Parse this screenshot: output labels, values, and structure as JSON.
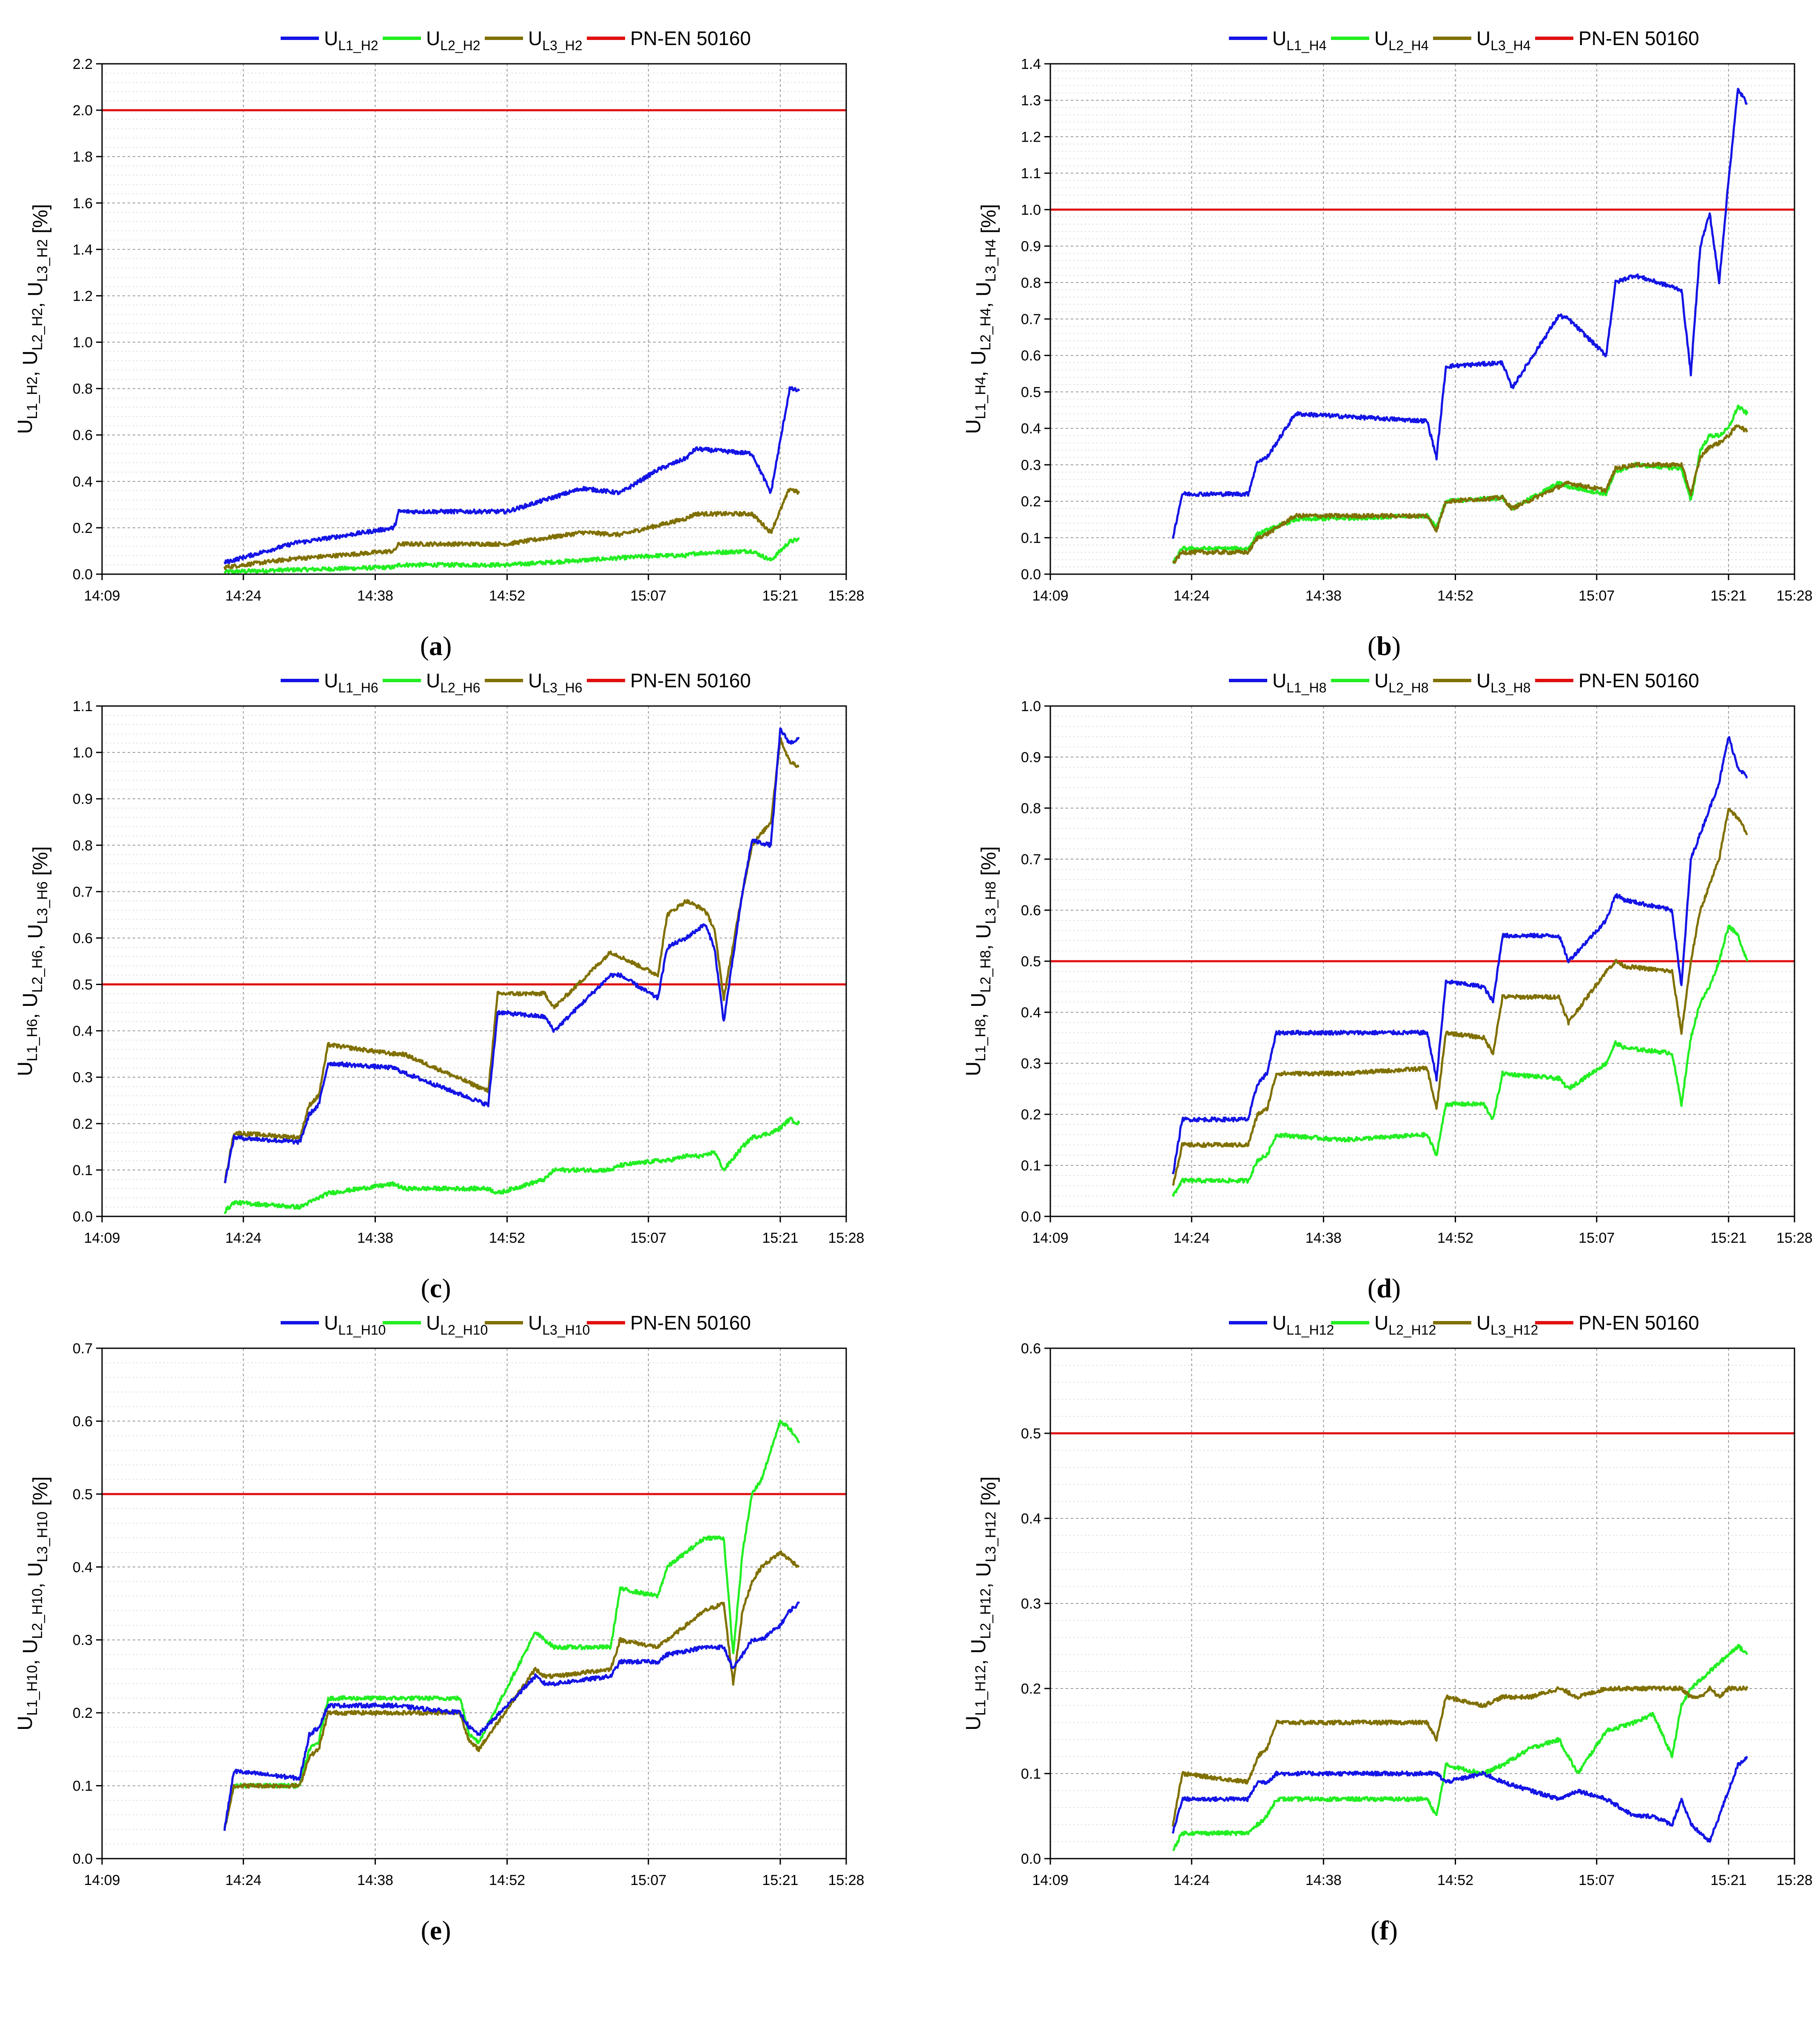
{
  "figure": {
    "time_axis": {
      "ticks": [
        "14:09",
        "14:24",
        "14:38",
        "14:52",
        "15:07",
        "15:21",
        "15:28"
      ],
      "range_min": [
        849,
        928
      ]
    }
  },
  "colors": {
    "L1": "#1414e6",
    "L2": "#22ee22",
    "L3": "#807000",
    "limit": "#e01010"
  },
  "chart_data": [
    {
      "type": "line",
      "panel": "a",
      "caption": {
        "letter": "a"
      },
      "harmonic": "H2",
      "legend": [
        {
          "key": "L1",
          "main": "U",
          "sub": "L1_H2"
        },
        {
          "key": "L2",
          "main": "U",
          "sub": "L2_H2"
        },
        {
          "key": "L3",
          "main": "U",
          "sub": "L3_H2"
        },
        {
          "key": "limit",
          "main": "PN-EN 50160",
          "sub": ""
        }
      ],
      "ylabel": {
        "parts": [
          {
            "t": "U",
            "s": "L1_H2"
          },
          {
            "t": ", U",
            "s": "L2_H2"
          },
          {
            "t": ", U",
            "s": "L3_H2"
          },
          {
            "t": " [%]",
            "s": ""
          }
        ]
      },
      "ylim": [
        0,
        2.2
      ],
      "yticks": [
        "0.0",
        "0.2",
        "0.4",
        "0.6",
        "0.8",
        "1.0",
        "1.2",
        "1.4",
        "1.6",
        "1.8",
        "2.0",
        "2.2"
      ],
      "limit": 2.0,
      "x_minutes": [
        862,
        870,
        870.5,
        880,
        880.5,
        888,
        888.5,
        892,
        900,
        904,
        908,
        911,
        912,
        918,
        920,
        922,
        923
      ],
      "series": [
        {
          "name": "U_L1_H2",
          "key": "L1",
          "values": [
            0.05,
            0.14,
            0.14,
            0.2,
            0.27,
            0.27,
            0.27,
            0.27,
            0.37,
            0.35,
            0.45,
            0.5,
            0.54,
            0.52,
            0.35,
            0.8,
            0.79
          ]
        },
        {
          "name": "U_L2_H2",
          "key": "L2",
          "values": [
            0.01,
            0.02,
            0.02,
            0.03,
            0.04,
            0.04,
            0.04,
            0.04,
            0.06,
            0.07,
            0.08,
            0.08,
            0.09,
            0.1,
            0.06,
            0.14,
            0.15
          ]
        },
        {
          "name": "U_L3_H2",
          "key": "L3",
          "values": [
            0.03,
            0.07,
            0.07,
            0.1,
            0.13,
            0.13,
            0.13,
            0.13,
            0.18,
            0.17,
            0.21,
            0.24,
            0.26,
            0.26,
            0.18,
            0.37,
            0.35
          ]
        }
      ]
    },
    {
      "type": "line",
      "panel": "b",
      "caption": {
        "letter": "b"
      },
      "harmonic": "H4",
      "legend": [
        {
          "key": "L1",
          "main": "U",
          "sub": "L1_H4"
        },
        {
          "key": "L2",
          "main": "U",
          "sub": "L2_H4"
        },
        {
          "key": "L3",
          "main": "U",
          "sub": "L3_H4"
        },
        {
          "key": "limit",
          "main": "PN-EN 50160",
          "sub": ""
        }
      ],
      "ylabel": {
        "parts": [
          {
            "t": "U",
            "s": "L1_H4"
          },
          {
            "t": ", U",
            "s": "L2_H4"
          },
          {
            "t": ", U",
            "s": "L3_H4"
          },
          {
            "t": " [%]",
            "s": ""
          }
        ]
      },
      "ylim": [
        0,
        1.4
      ],
      "yticks": [
        "0.0",
        "0.1",
        "0.2",
        "0.3",
        "0.4",
        "0.5",
        "0.6",
        "0.7",
        "0.8",
        "0.9",
        "1.0",
        "1.1",
        "1.2",
        "1.3",
        "1.4"
      ],
      "limit": 1.0,
      "x_minutes": [
        862,
        863,
        870,
        871,
        872,
        875,
        889,
        890,
        891,
        897,
        898,
        903,
        904,
        908,
        909,
        911,
        916,
        917,
        918,
        919,
        920,
        921,
        922,
        923
      ],
      "series": [
        {
          "name": "U_L1_H4",
          "key": "L1",
          "values": [
            0.1,
            0.22,
            0.22,
            0.31,
            0.32,
            0.44,
            0.42,
            0.32,
            0.57,
            0.58,
            0.51,
            0.71,
            0.7,
            0.6,
            0.8,
            0.82,
            0.78,
            0.55,
            0.9,
            0.99,
            0.8,
            1.08,
            1.33,
            1.29
          ]
        },
        {
          "name": "U_L2_H4",
          "key": "L2",
          "values": [
            0.03,
            0.07,
            0.07,
            0.11,
            0.12,
            0.15,
            0.16,
            0.13,
            0.2,
            0.21,
            0.18,
            0.25,
            0.24,
            0.22,
            0.28,
            0.3,
            0.29,
            0.2,
            0.34,
            0.38,
            0.38,
            0.4,
            0.46,
            0.44
          ]
        },
        {
          "name": "U_L3_H4",
          "key": "L3",
          "values": [
            0.03,
            0.06,
            0.06,
            0.1,
            0.11,
            0.16,
            0.16,
            0.12,
            0.2,
            0.21,
            0.18,
            0.24,
            0.25,
            0.23,
            0.29,
            0.3,
            0.3,
            0.22,
            0.32,
            0.35,
            0.36,
            0.38,
            0.41,
            0.39
          ]
        }
      ]
    },
    {
      "type": "line",
      "panel": "c",
      "caption": {
        "letter": "c"
      },
      "harmonic": "H6",
      "legend": [
        {
          "key": "L1",
          "main": "U",
          "sub": "L1_H6"
        },
        {
          "key": "L2",
          "main": "U",
          "sub": "L2_H6"
        },
        {
          "key": "L3",
          "main": "U",
          "sub": "L3_H6"
        },
        {
          "key": "limit",
          "main": "PN-EN 50160",
          "sub": ""
        }
      ],
      "ylabel": {
        "parts": [
          {
            "t": "U",
            "s": "L1_H6"
          },
          {
            "t": ", U",
            "s": "L2_H6"
          },
          {
            "t": ", U",
            "s": "L3_H6"
          },
          {
            "t": " [%]",
            "s": ""
          }
        ]
      },
      "ylim": [
        0,
        1.1
      ],
      "yticks": [
        "0.0",
        "0.1",
        "0.2",
        "0.3",
        "0.4",
        "0.5",
        "0.6",
        "0.7",
        "0.8",
        "0.9",
        "1.0",
        "1.1"
      ],
      "limit": 0.5,
      "x_minutes": [
        862,
        863,
        870,
        871,
        872,
        873,
        880,
        881,
        890,
        891,
        896,
        897,
        903,
        904,
        908,
        909,
        911,
        913,
        914,
        915,
        917,
        918,
        920,
        921,
        922,
        923
      ],
      "series": [
        {
          "name": "U_L1_H6",
          "key": "L1",
          "values": [
            0.07,
            0.17,
            0.16,
            0.22,
            0.24,
            0.33,
            0.32,
            0.31,
            0.24,
            0.44,
            0.43,
            0.4,
            0.52,
            0.52,
            0.47,
            0.58,
            0.6,
            0.63,
            0.58,
            0.42,
            0.7,
            0.81,
            0.8,
            1.05,
            1.02,
            1.03
          ]
        },
        {
          "name": "U_L2_H6",
          "key": "L2",
          "values": [
            0.01,
            0.03,
            0.02,
            0.03,
            0.04,
            0.05,
            0.07,
            0.06,
            0.06,
            0.05,
            0.08,
            0.1,
            0.1,
            0.11,
            0.12,
            0.12,
            0.13,
            0.13,
            0.14,
            0.1,
            0.15,
            0.17,
            0.18,
            0.19,
            0.21,
            0.2
          ]
        },
        {
          "name": "U_L3_H6",
          "key": "L3",
          "values": [
            0.07,
            0.18,
            0.17,
            0.24,
            0.26,
            0.37,
            0.35,
            0.35,
            0.27,
            0.48,
            0.48,
            0.45,
            0.57,
            0.56,
            0.52,
            0.65,
            0.68,
            0.66,
            0.62,
            0.47,
            0.7,
            0.8,
            0.85,
            1.03,
            0.98,
            0.97
          ]
        }
      ]
    },
    {
      "type": "line",
      "panel": "d",
      "caption": {
        "letter": "d"
      },
      "harmonic": "H8",
      "legend": [
        {
          "key": "L1",
          "main": "U",
          "sub": "L1_H8"
        },
        {
          "key": "L2",
          "main": "U",
          "sub": "L2_H8"
        },
        {
          "key": "L3",
          "main": "U",
          "sub": "L3_H8"
        },
        {
          "key": "limit",
          "main": "PN-EN 50160",
          "sub": ""
        }
      ],
      "ylabel": {
        "parts": [
          {
            "t": "U",
            "s": "L1_H8"
          },
          {
            "t": ", U",
            "s": "L2_H8"
          },
          {
            "t": ", U",
            "s": "L3_H8"
          },
          {
            "t": " [%]",
            "s": ""
          }
        ]
      },
      "ylim": [
        0,
        1.0
      ],
      "yticks": [
        "0.0",
        "0.1",
        "0.2",
        "0.3",
        "0.4",
        "0.5",
        "0.6",
        "0.7",
        "0.8",
        "0.9",
        "1.0"
      ],
      "limit": 0.5,
      "x_minutes": [
        862,
        863,
        870,
        871,
        872,
        873,
        880,
        889,
        890,
        891,
        895,
        896,
        897,
        903,
        904,
        908,
        909,
        910,
        915,
        916,
        917,
        918,
        919,
        920,
        921,
        922,
        923
      ],
      "series": [
        {
          "name": "U_L1_H8",
          "key": "L1",
          "values": [
            0.08,
            0.19,
            0.19,
            0.26,
            0.28,
            0.36,
            0.36,
            0.36,
            0.27,
            0.46,
            0.45,
            0.42,
            0.55,
            0.55,
            0.5,
            0.58,
            0.63,
            0.62,
            0.6,
            0.45,
            0.7,
            0.75,
            0.8,
            0.85,
            0.94,
            0.88,
            0.86
          ]
        },
        {
          "name": "U_L2_H8",
          "key": "L2",
          "values": [
            0.04,
            0.07,
            0.07,
            0.11,
            0.12,
            0.16,
            0.15,
            0.16,
            0.12,
            0.22,
            0.22,
            0.19,
            0.28,
            0.27,
            0.25,
            0.3,
            0.34,
            0.33,
            0.32,
            0.22,
            0.35,
            0.42,
            0.45,
            0.5,
            0.57,
            0.55,
            0.5
          ]
        },
        {
          "name": "U_L3_H8",
          "key": "L3",
          "values": [
            0.06,
            0.14,
            0.14,
            0.2,
            0.21,
            0.28,
            0.28,
            0.29,
            0.21,
            0.36,
            0.35,
            0.32,
            0.43,
            0.43,
            0.38,
            0.48,
            0.5,
            0.49,
            0.48,
            0.36,
            0.5,
            0.6,
            0.65,
            0.7,
            0.8,
            0.78,
            0.75
          ]
        }
      ]
    },
    {
      "type": "line",
      "panel": "e",
      "caption": {
        "letter": "e"
      },
      "harmonic": "H10",
      "legend": [
        {
          "key": "L1",
          "main": "U",
          "sub": "L1_H10"
        },
        {
          "key": "L2",
          "main": "U",
          "sub": "L2_H10"
        },
        {
          "key": "L3",
          "main": "U",
          "sub": "L3_H10"
        },
        {
          "key": "limit",
          "main": "PN-EN 50160",
          "sub": ""
        }
      ],
      "ylabel": {
        "parts": [
          {
            "t": "U",
            "s": "L1_H10"
          },
          {
            "t": ", U",
            "s": "L2_H10"
          },
          {
            "t": ", U",
            "s": "L3_H10"
          },
          {
            "t": " [%]",
            "s": ""
          }
        ]
      },
      "ylim": [
        0,
        0.7
      ],
      "yticks": [
        "0.0",
        "0.1",
        "0.2",
        "0.3",
        "0.4",
        "0.5",
        "0.6",
        "0.7"
      ],
      "limit": 0.5,
      "x_minutes": [
        862,
        863,
        870,
        871,
        872,
        873,
        880,
        887,
        888,
        889,
        895,
        896,
        897,
        903,
        904,
        908,
        909,
        913,
        915,
        916,
        917,
        918,
        919,
        920,
        921,
        922,
        923
      ],
      "series": [
        {
          "name": "U_L1_H10",
          "key": "L1",
          "values": [
            0.04,
            0.12,
            0.11,
            0.17,
            0.18,
            0.21,
            0.21,
            0.2,
            0.18,
            0.17,
            0.25,
            0.24,
            0.24,
            0.25,
            0.27,
            0.27,
            0.28,
            0.29,
            0.29,
            0.26,
            0.28,
            0.3,
            0.3,
            0.31,
            0.32,
            0.34,
            0.35
          ]
        },
        {
          "name": "U_L2_H10",
          "key": "L2",
          "values": [
            0.04,
            0.1,
            0.1,
            0.15,
            0.16,
            0.22,
            0.22,
            0.22,
            0.17,
            0.16,
            0.31,
            0.3,
            0.29,
            0.29,
            0.37,
            0.36,
            0.4,
            0.44,
            0.44,
            0.28,
            0.42,
            0.5,
            0.52,
            0.56,
            0.6,
            0.59,
            0.57
          ]
        },
        {
          "name": "U_L3_H10",
          "key": "L3",
          "values": [
            0.04,
            0.1,
            0.1,
            0.14,
            0.15,
            0.2,
            0.2,
            0.2,
            0.16,
            0.15,
            0.26,
            0.25,
            0.25,
            0.26,
            0.3,
            0.29,
            0.3,
            0.34,
            0.35,
            0.24,
            0.34,
            0.38,
            0.4,
            0.41,
            0.42,
            0.41,
            0.4
          ]
        }
      ]
    },
    {
      "type": "line",
      "panel": "f",
      "caption": {
        "letter": "f"
      },
      "harmonic": "H12",
      "legend": [
        {
          "key": "L1",
          "main": "U",
          "sub": "L1_H12"
        },
        {
          "key": "L2",
          "main": "U",
          "sub": "L2_H12"
        },
        {
          "key": "L3",
          "main": "U",
          "sub": "L3_H12"
        },
        {
          "key": "limit",
          "main": "PN-EN 50160",
          "sub": ""
        }
      ],
      "ylabel": {
        "parts": [
          {
            "t": "U",
            "s": "L1_H12"
          },
          {
            "t": ", U",
            "s": "L2_H12"
          },
          {
            "t": ", U",
            "s": "L3_H12"
          },
          {
            "t": " [%]",
            "s": ""
          }
        ]
      },
      "ylim": [
        0,
        0.6
      ],
      "yticks": [
        "0.0",
        "0.1",
        "0.2",
        "0.3",
        "0.4",
        "0.5",
        "0.6"
      ],
      "limit": 0.5,
      "x_minutes": [
        862,
        863,
        870,
        871,
        872,
        873,
        880,
        889,
        890,
        891,
        895,
        897,
        900,
        903,
        905,
        908,
        911,
        913,
        915,
        916,
        917,
        918,
        919,
        920,
        921,
        922,
        923
      ],
      "series": [
        {
          "name": "U_L1_H12",
          "key": "L1",
          "values": [
            0.03,
            0.07,
            0.07,
            0.09,
            0.09,
            0.1,
            0.1,
            0.1,
            0.1,
            0.09,
            0.1,
            0.09,
            0.08,
            0.07,
            0.08,
            0.07,
            0.05,
            0.05,
            0.04,
            0.07,
            0.04,
            0.03,
            0.02,
            0.05,
            0.08,
            0.11,
            0.12
          ]
        },
        {
          "name": "U_L2_H12",
          "key": "L2",
          "values": [
            0.01,
            0.03,
            0.03,
            0.04,
            0.05,
            0.07,
            0.07,
            0.07,
            0.05,
            0.11,
            0.1,
            0.11,
            0.13,
            0.14,
            0.1,
            0.15,
            0.16,
            0.17,
            0.12,
            0.18,
            0.2,
            0.21,
            0.22,
            0.23,
            0.24,
            0.25,
            0.24
          ]
        },
        {
          "name": "U_L3_H12",
          "key": "L3",
          "values": [
            0.04,
            0.1,
            0.09,
            0.12,
            0.13,
            0.16,
            0.16,
            0.16,
            0.14,
            0.19,
            0.18,
            0.19,
            0.19,
            0.2,
            0.19,
            0.2,
            0.2,
            0.2,
            0.2,
            0.2,
            0.19,
            0.19,
            0.2,
            0.19,
            0.2,
            0.2,
            0.2
          ]
        }
      ]
    }
  ]
}
